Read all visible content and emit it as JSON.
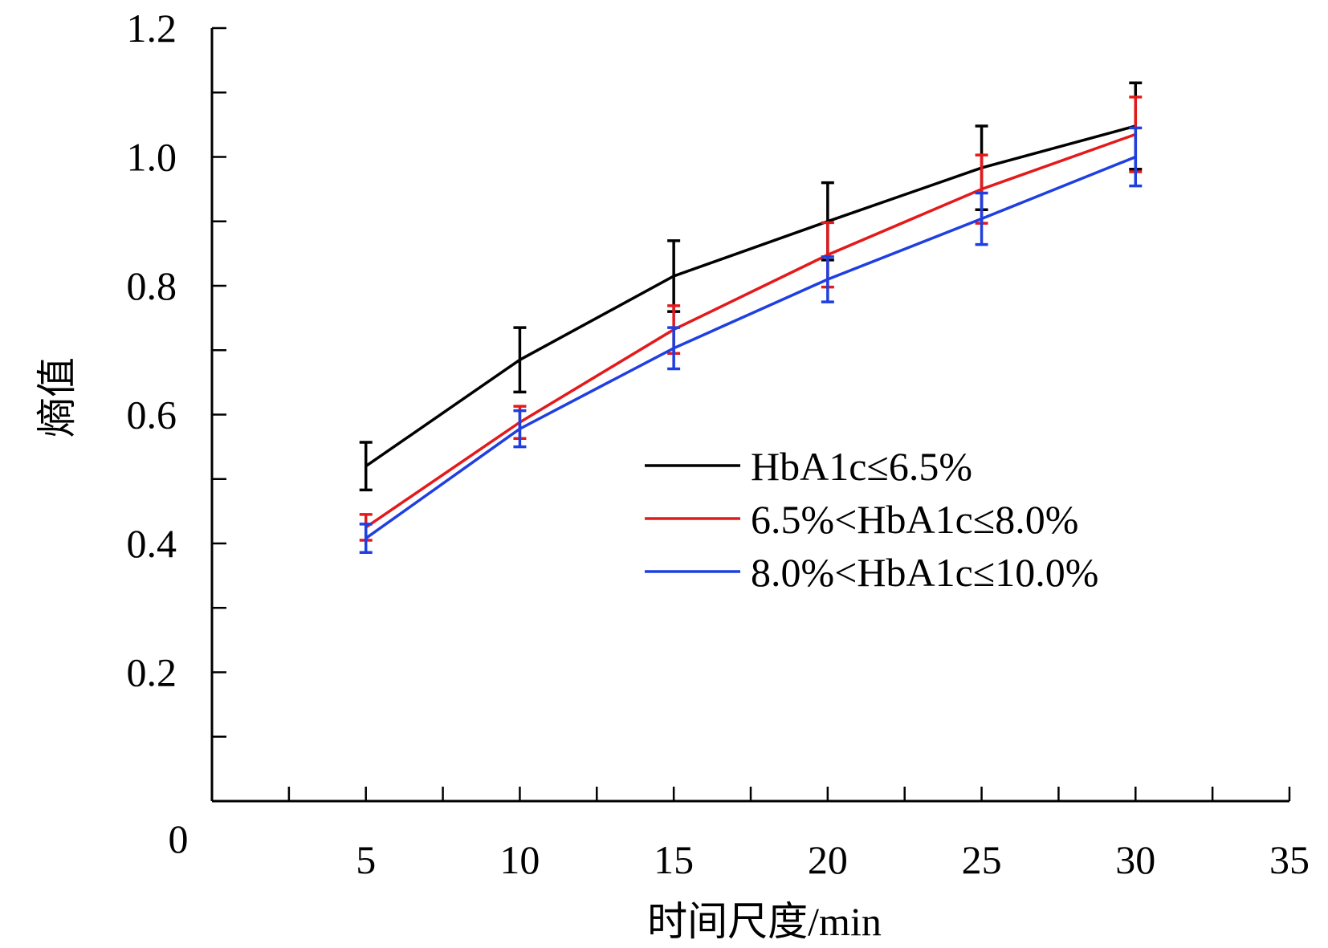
{
  "chart_data": {
    "type": "line",
    "title": "",
    "xlabel": "时间尺度/min",
    "ylabel": "熵值",
    "xlim": [
      0,
      35
    ],
    "ylim": [
      0,
      1.2
    ],
    "x_ticks": [
      5,
      10,
      15,
      20,
      25,
      30,
      35
    ],
    "x_tick_labels": [
      "5",
      "10",
      "15",
      "20",
      "25",
      "30",
      "35"
    ],
    "y_ticks": [
      0.2,
      0.4,
      0.6,
      0.8,
      1.0,
      1.2
    ],
    "y_tick_labels": [
      "0.2",
      "0.4",
      "0.6",
      "0.8",
      "1.0",
      "1.2"
    ],
    "origin_label": "0",
    "grid": false,
    "legend_position": "center-right",
    "error_bars": true,
    "x": [
      5,
      10,
      15,
      20,
      25,
      30
    ],
    "series": [
      {
        "name": "HbA1c≤6.5%",
        "color": "#000000",
        "values": [
          0.52,
          0.685,
          0.815,
          0.9,
          0.983,
          1.048
        ],
        "errors": [
          0.037,
          0.05,
          0.055,
          0.06,
          0.065,
          0.067
        ]
      },
      {
        "name": "6.5%<HbA1c≤8.0%",
        "color": "#e31a1c",
        "values": [
          0.425,
          0.588,
          0.732,
          0.848,
          0.95,
          1.035
        ],
        "errors": [
          0.02,
          0.025,
          0.037,
          0.05,
          0.053,
          0.058
        ]
      },
      {
        "name": "8.0%<HbA1c≤10.0%",
        "color": "#1f3fe0",
        "values": [
          0.408,
          0.578,
          0.703,
          0.81,
          0.904,
          1.0
        ],
        "errors": [
          0.022,
          0.028,
          0.032,
          0.035,
          0.04,
          0.045
        ]
      }
    ]
  }
}
